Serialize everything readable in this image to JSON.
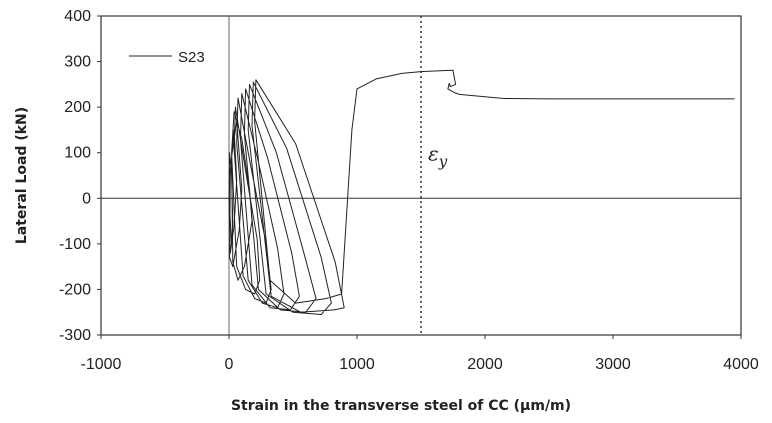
{
  "chart_data": {
    "type": "line",
    "title": "",
    "xlabel": "Strain in the transverse steel  of CC (µm/m)",
    "ylabel": "Lateral Load (kN)",
    "xlim": [
      -1000,
      4000
    ],
    "ylim": [
      -300,
      400
    ],
    "x_ticks": [
      -1000,
      0,
      1000,
      2000,
      3000,
      4000
    ],
    "y_ticks": [
      -300,
      -200,
      -100,
      0,
      100,
      200,
      300,
      400
    ],
    "x_tick_labels": [
      "-1000",
      "0",
      "1000",
      "2000",
      "3000",
      "4000"
    ],
    "y_tick_labels": [
      "-300",
      "-200",
      "-100",
      "0",
      "100",
      "200",
      "300",
      "400"
    ],
    "grid": false,
    "legend": {
      "position": "top-left",
      "entries": [
        "S23"
      ]
    },
    "annotations": [
      {
        "text": "εy",
        "x": 1500,
        "type": "vertical-dashed-line",
        "meaning": "yield strain"
      }
    ],
    "series": [
      {
        "name": "S23",
        "x": [
          0,
          20,
          30,
          20,
          5,
          0,
          10,
          40,
          60,
          40,
          10,
          5,
          30,
          80,
          100,
          60,
          20,
          30,
          70,
          120,
          150,
          180,
          160,
          100,
          40,
          20,
          60,
          130,
          200,
          240,
          220,
          130,
          50,
          40,
          110,
          200,
          290,
          330,
          290,
          170,
          70,
          60,
          150,
          260,
          380,
          430,
          380,
          230,
          100,
          90,
          180,
          320,
          480,
          550,
          490,
          300,
          130,
          120,
          230,
          400,
          600,
          680,
          590,
          370,
          160,
          150,
          290,
          500,
          720,
          800,
          720,
          450,
          190,
          180,
          330,
          560,
          820,
          900,
          830,
          520,
          210,
          200,
          320,
          520,
          760,
          880,
          960,
          1000,
          1150,
          1350,
          1500,
          1650,
          1750,
          1760,
          1770,
          1730,
          1720,
          1710,
          1760,
          1800,
          2000,
          2150,
          2500,
          3000,
          3500,
          3950
        ],
        "y": [
          0,
          -100,
          -50,
          50,
          100,
          0,
          -120,
          -60,
          40,
          150,
          60,
          -130,
          -150,
          -70,
          20,
          170,
          90,
          -140,
          -180,
          -150,
          -100,
          -50,
          20,
          130,
          190,
          100,
          -150,
          -200,
          -210,
          -180,
          -90,
          60,
          200,
          110,
          -170,
          -220,
          -230,
          -200,
          -100,
          70,
          220,
          120,
          -180,
          -230,
          -240,
          -210,
          -110,
          80,
          230,
          130,
          -190,
          -240,
          -245,
          -215,
          -120,
          90,
          240,
          140,
          -200,
          -245,
          -250,
          -220,
          -125,
          100,
          250,
          150,
          -210,
          -250,
          -255,
          -230,
          -130,
          110,
          255,
          160,
          -215,
          -250,
          -245,
          -240,
          -140,
          120,
          260,
          170,
          -180,
          -230,
          -220,
          -210,
          150,
          240,
          262,
          274,
          278,
          280,
          281,
          265,
          250,
          245,
          252,
          240,
          232,
          228,
          223,
          219,
          218,
          218,
          218,
          218
        ]
      }
    ]
  }
}
